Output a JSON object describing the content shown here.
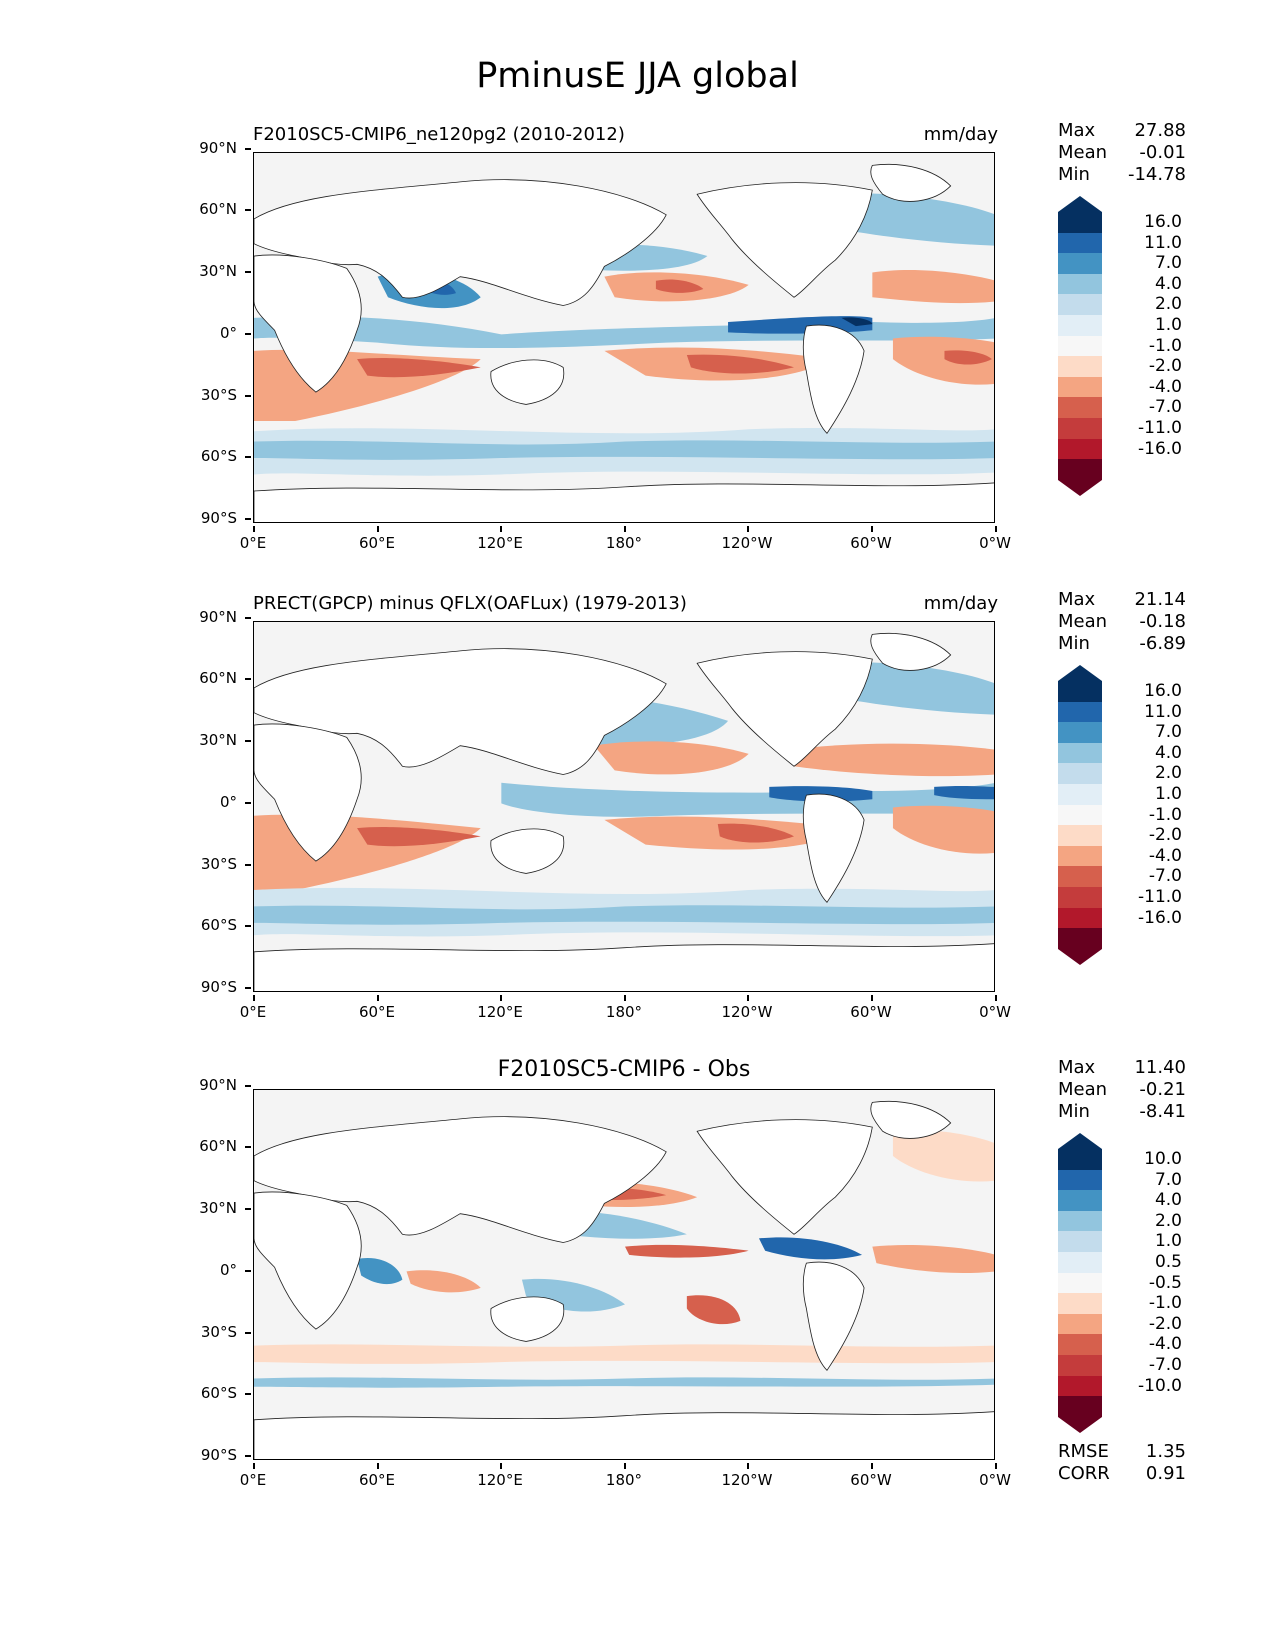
{
  "figure": {
    "title": "PminusE JJA global"
  },
  "axes": {
    "y_ticks": [
      "90°N",
      "60°N",
      "30°N",
      "0°",
      "30°S",
      "60°S",
      "90°S"
    ],
    "x_ticks": [
      "0°E",
      "60°E",
      "120°E",
      "180°",
      "120°W",
      "60°W",
      "0°W"
    ]
  },
  "colors": {
    "neg3": "#67001f",
    "neg2": "#b2182b",
    "neg1": "#d6604d",
    "neg0": "#f4a582",
    "negw": "#fddbc7",
    "mid": "#f7f7f7",
    "posw": "#d1e5f0",
    "pos0": "#92c5de",
    "pos1": "#4393c3",
    "pos2": "#2166ac",
    "pos3": "#053061",
    "land": "#ffffff",
    "coast": "#222222"
  },
  "panels": [
    {
      "title_left": "F2010SC5-CMIP6_ne120pg2 (2010-2012)",
      "title_right": "mm/day",
      "title_center": "",
      "stats": [
        {
          "label": "Max",
          "value": "27.88"
        },
        {
          "label": "Mean",
          "value": "-0.01"
        },
        {
          "label": "Min",
          "value": "-14.78"
        }
      ],
      "colorbar_levels": [
        "16.0",
        "11.0",
        "7.0",
        "4.0",
        "2.0",
        "1.0",
        "-1.0",
        "-2.0",
        "-4.0",
        "-7.0",
        "-11.0",
        "-16.0"
      ],
      "extra_stats": []
    },
    {
      "title_left": "PRECT(GPCP) minus QFLX(OAFLux) (1979-2013)",
      "title_right": "mm/day",
      "title_center": "",
      "stats": [
        {
          "label": "Max",
          "value": "21.14"
        },
        {
          "label": "Mean",
          "value": "-0.18"
        },
        {
          "label": "Min",
          "value": "-6.89"
        }
      ],
      "colorbar_levels": [
        "16.0",
        "11.0",
        "7.0",
        "4.0",
        "2.0",
        "1.0",
        "-1.0",
        "-2.0",
        "-4.0",
        "-7.0",
        "-11.0",
        "-16.0"
      ],
      "extra_stats": []
    },
    {
      "title_left": "",
      "title_right": "",
      "title_center": "F2010SC5-CMIP6 - Obs",
      "stats": [
        {
          "label": "Max",
          "value": "11.40"
        },
        {
          "label": "Mean",
          "value": "-0.21"
        },
        {
          "label": "Min",
          "value": "-8.41"
        }
      ],
      "colorbar_levels": [
        "10.0",
        "7.0",
        "4.0",
        "2.0",
        "1.0",
        "0.5",
        "-0.5",
        "-1.0",
        "-2.0",
        "-4.0",
        "-7.0",
        "-10.0"
      ],
      "extra_stats": [
        {
          "label": "RMSE",
          "value": "1.35"
        },
        {
          "label": "CORR",
          "value": "0.91"
        }
      ]
    }
  ]
}
